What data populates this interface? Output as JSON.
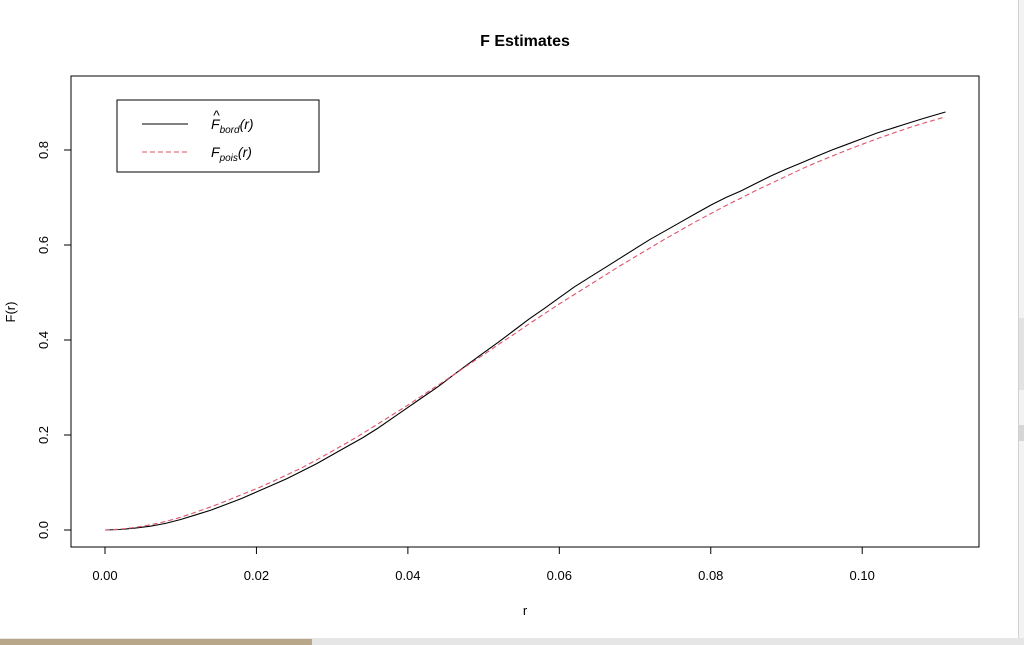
{
  "chart_data": {
    "type": "line",
    "title": "F Estimates",
    "xlabel": "r",
    "ylabel": "F(r)",
    "xlim": [
      0,
      0.111
    ],
    "ylim": [
      0,
      0.92
    ],
    "x_ticks": [
      0.0,
      0.02,
      0.04,
      0.06,
      0.08,
      0.1
    ],
    "x_tick_labels": [
      "0.00",
      "0.02",
      "0.04",
      "0.06",
      "0.08",
      "0.10"
    ],
    "y_ticks": [
      0.0,
      0.2,
      0.4,
      0.6,
      0.8
    ],
    "y_tick_labels": [
      "0.0",
      "0.2",
      "0.4",
      "0.6",
      "0.8"
    ],
    "grid": false,
    "legend_position": "top-left",
    "series": [
      {
        "key": "bord",
        "legend": {
          "main": "F",
          "hat": "^",
          "sub": "bord",
          "arg": "(r)"
        },
        "color": "#000000",
        "dash": "solid",
        "x": [
          0,
          0.002,
          0.004,
          0.006,
          0.008,
          0.01,
          0.012,
          0.014,
          0.016,
          0.018,
          0.02,
          0.022,
          0.024,
          0.026,
          0.028,
          0.03,
          0.032,
          0.034,
          0.036,
          0.038,
          0.04,
          0.042,
          0.044,
          0.046,
          0.048,
          0.05,
          0.052,
          0.054,
          0.056,
          0.058,
          0.06,
          0.062,
          0.064,
          0.066,
          0.068,
          0.07,
          0.072,
          0.074,
          0.076,
          0.078,
          0.08,
          0.082,
          0.084,
          0.086,
          0.088,
          0.09,
          0.092,
          0.094,
          0.096,
          0.098,
          0.1,
          0.102,
          0.104,
          0.106,
          0.108,
          0.111
        ],
        "y": [
          0,
          0.001,
          0.004,
          0.008,
          0.014,
          0.022,
          0.032,
          0.042,
          0.054,
          0.066,
          0.08,
          0.094,
          0.108,
          0.124,
          0.14,
          0.158,
          0.176,
          0.194,
          0.214,
          0.236,
          0.258,
          0.28,
          0.302,
          0.326,
          0.35,
          0.373,
          0.396,
          0.42,
          0.444,
          0.466,
          0.489,
          0.512,
          0.532,
          0.552,
          0.572,
          0.592,
          0.612,
          0.63,
          0.648,
          0.666,
          0.684,
          0.7,
          0.714,
          0.73,
          0.746,
          0.76,
          0.773,
          0.787,
          0.8,
          0.812,
          0.824,
          0.836,
          0.846,
          0.856,
          0.866,
          0.88
        ]
      },
      {
        "key": "pois",
        "legend": {
          "main": "F",
          "hat": "",
          "sub": "pois",
          "arg": "(r)"
        },
        "color": "#DF536B",
        "dash": "dashed",
        "x": [
          0,
          0.002,
          0.004,
          0.006,
          0.008,
          0.01,
          0.012,
          0.014,
          0.016,
          0.018,
          0.02,
          0.022,
          0.024,
          0.026,
          0.028,
          0.03,
          0.032,
          0.034,
          0.036,
          0.038,
          0.04,
          0.042,
          0.044,
          0.046,
          0.048,
          0.05,
          0.052,
          0.054,
          0.056,
          0.058,
          0.06,
          0.062,
          0.064,
          0.066,
          0.068,
          0.07,
          0.072,
          0.074,
          0.076,
          0.078,
          0.08,
          0.082,
          0.084,
          0.086,
          0.088,
          0.09,
          0.092,
          0.094,
          0.096,
          0.098,
          0.1,
          0.102,
          0.104,
          0.106,
          0.108,
          0.111
        ],
        "y": [
          0,
          0.0017,
          0.0055,
          0.0109,
          0.018,
          0.0267,
          0.0377,
          0.0488,
          0.0611,
          0.0744,
          0.087,
          0.101,
          0.116,
          0.131,
          0.148,
          0.166,
          0.184,
          0.203,
          0.223,
          0.243,
          0.263,
          0.284,
          0.305,
          0.326,
          0.348,
          0.369,
          0.391,
          0.412,
          0.434,
          0.455,
          0.476,
          0.496,
          0.516,
          0.536,
          0.556,
          0.575,
          0.594,
          0.613,
          0.631,
          0.649,
          0.666,
          0.683,
          0.699,
          0.715,
          0.73,
          0.745,
          0.76,
          0.774,
          0.787,
          0.8,
          0.812,
          0.824,
          0.835,
          0.846,
          0.856,
          0.87
        ]
      }
    ]
  }
}
